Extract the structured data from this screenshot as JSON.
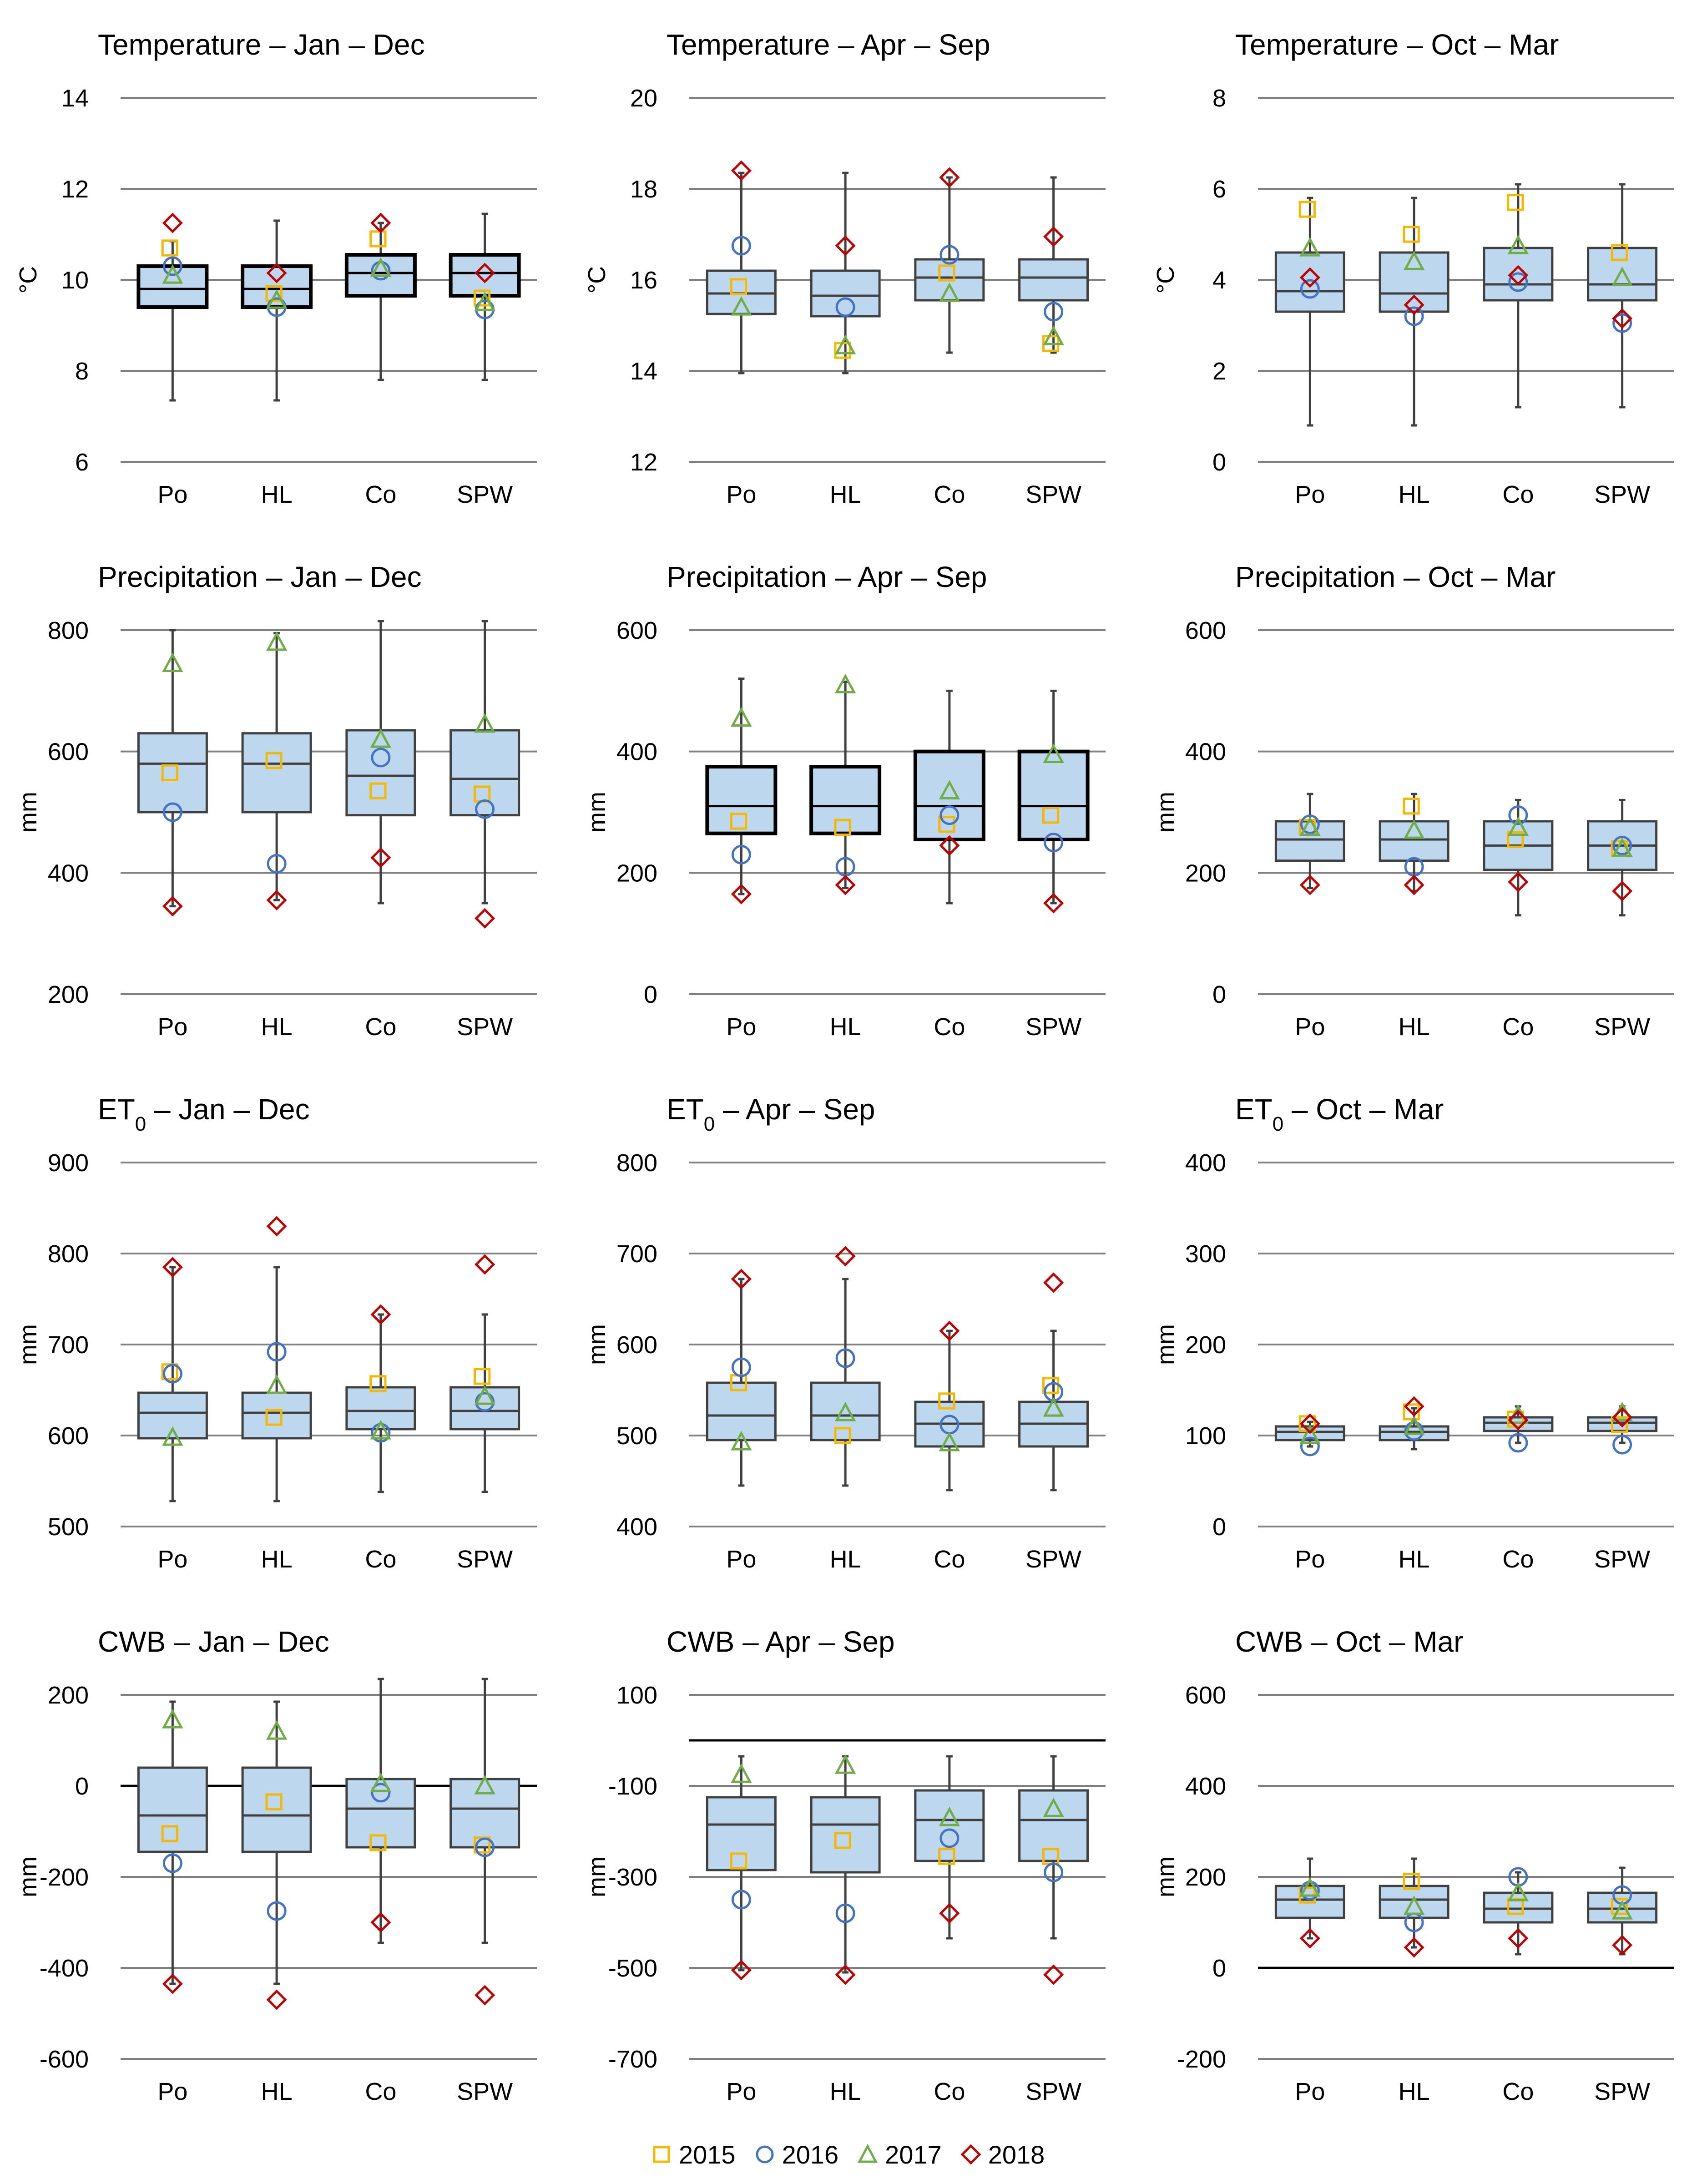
{
  "legend": [
    {
      "label": "2015",
      "symbol": "square",
      "color": "#F5B800"
    },
    {
      "label": "2016",
      "symbol": "circle",
      "color": "#4472C4"
    },
    {
      "label": "2017",
      "symbol": "triangle",
      "color": "#70AD47"
    },
    {
      "label": "2018",
      "symbol": "diamond",
      "color": "#C00000"
    }
  ],
  "colors": {
    "box_fill": "#BDD7EE",
    "box_edge": "#404040",
    "grid": "#808080",
    "zero_line": "#000000"
  },
  "chart_data": [
    {
      "type": "box",
      "title": "Temperature – Jan – Dec",
      "ylabel": "°C",
      "ylim": [
        6,
        14
      ],
      "yticks": [
        6,
        8,
        10,
        12,
        14
      ],
      "categories": [
        "Po",
        "HL",
        "Co",
        "SPW"
      ],
      "zero_line": false,
      "bold_boxes": true,
      "boxes": [
        {
          "min": 7.35,
          "q1": 9.4,
          "median": 9.8,
          "q3": 10.3,
          "max": 10.85
        },
        {
          "min": 7.35,
          "q1": 9.4,
          "median": 9.8,
          "q3": 10.3,
          "max": 11.3
        },
        {
          "min": 7.8,
          "q1": 9.65,
          "median": 10.15,
          "q3": 10.55,
          "max": 11.25
        },
        {
          "min": 7.8,
          "q1": 9.65,
          "median": 10.15,
          "q3": 10.55,
          "max": 11.45
        }
      ],
      "years": {
        "2015": [
          10.7,
          9.7,
          10.9,
          9.6
        ],
        "2016": [
          10.3,
          9.4,
          10.2,
          9.35
        ],
        "2017": [
          10.1,
          9.55,
          10.25,
          9.5
        ],
        "2018": [
          11.25,
          10.15,
          11.25,
          10.15
        ]
      }
    },
    {
      "type": "box",
      "title": "Temperature – Apr – Sep",
      "ylabel": "°C",
      "ylim": [
        12,
        20
      ],
      "yticks": [
        12,
        14,
        16,
        18,
        20
      ],
      "categories": [
        "Po",
        "HL",
        "Co",
        "SPW"
      ],
      "zero_line": false,
      "bold_boxes": false,
      "boxes": [
        {
          "min": 13.95,
          "q1": 15.25,
          "median": 15.7,
          "q3": 16.2,
          "max": 18.35
        },
        {
          "min": 13.95,
          "q1": 15.2,
          "median": 15.65,
          "q3": 16.2,
          "max": 18.35
        },
        {
          "min": 14.4,
          "q1": 15.55,
          "median": 16.05,
          "q3": 16.45,
          "max": 18.25
        },
        {
          "min": 14.4,
          "q1": 15.55,
          "median": 16.05,
          "q3": 16.45,
          "max": 18.25
        }
      ],
      "years": {
        "2015": [
          15.85,
          14.45,
          16.15,
          14.6
        ],
        "2016": [
          16.75,
          15.4,
          16.55,
          15.3
        ],
        "2017": [
          15.4,
          14.55,
          15.7,
          14.75
        ],
        "2018": [
          18.4,
          16.75,
          18.25,
          16.95
        ]
      }
    },
    {
      "type": "box",
      "title": "Temperature – Oct – Mar",
      "ylabel": "°C",
      "ylim": [
        0,
        8
      ],
      "yticks": [
        0,
        2,
        4,
        6,
        8
      ],
      "categories": [
        "Po",
        "HL",
        "Co",
        "SPW"
      ],
      "zero_line": false,
      "bold_boxes": false,
      "boxes": [
        {
          "min": 0.8,
          "q1": 3.3,
          "median": 3.75,
          "q3": 4.6,
          "max": 5.8
        },
        {
          "min": 0.8,
          "q1": 3.3,
          "median": 3.7,
          "q3": 4.6,
          "max": 5.8
        },
        {
          "min": 1.2,
          "q1": 3.55,
          "median": 3.9,
          "q3": 4.7,
          "max": 6.1
        },
        {
          "min": 1.2,
          "q1": 3.55,
          "median": 3.9,
          "q3": 4.7,
          "max": 6.1
        }
      ],
      "years": {
        "2015": [
          5.55,
          5.0,
          5.7,
          4.6
        ],
        "2016": [
          3.8,
          3.2,
          3.95,
          3.05
        ],
        "2017": [
          4.7,
          4.4,
          4.75,
          4.05
        ],
        "2018": [
          4.05,
          3.45,
          4.1,
          3.15
        ]
      }
    },
    {
      "type": "box",
      "title": "Precipitation – Jan – Dec",
      "ylabel": "mm",
      "ylim": [
        200,
        800
      ],
      "yticks": [
        200,
        400,
        600,
        800
      ],
      "categories": [
        "Po",
        "HL",
        "Co",
        "SPW"
      ],
      "zero_line": false,
      "bold_boxes": false,
      "boxes": [
        {
          "min": 345,
          "q1": 500,
          "median": 580,
          "q3": 630,
          "max": 800
        },
        {
          "min": 355,
          "q1": 500,
          "median": 580,
          "q3": 630,
          "max": 795
        },
        {
          "min": 350,
          "q1": 495,
          "median": 560,
          "q3": 635,
          "max": 815
        },
        {
          "min": 350,
          "q1": 495,
          "median": 555,
          "q3": 635,
          "max": 815
        }
      ],
      "years": {
        "2015": [
          565,
          585,
          535,
          530
        ],
        "2016": [
          500,
          415,
          590,
          505
        ],
        "2017": [
          745,
          780,
          620,
          645
        ],
        "2018": [
          345,
          355,
          425,
          325
        ]
      }
    },
    {
      "type": "box",
      "title": "Precipitation – Apr – Sep",
      "ylabel": "mm",
      "ylim": [
        0,
        600
      ],
      "yticks": [
        0,
        200,
        400,
        600
      ],
      "categories": [
        "Po",
        "HL",
        "Co",
        "SPW"
      ],
      "zero_line": false,
      "bold_boxes": true,
      "boxes": [
        {
          "min": 165,
          "q1": 265,
          "median": 310,
          "q3": 375,
          "max": 520
        },
        {
          "min": 175,
          "q1": 265,
          "median": 310,
          "q3": 375,
          "max": 515
        },
        {
          "min": 150,
          "q1": 255,
          "median": 310,
          "q3": 400,
          "max": 500
        },
        {
          "min": 150,
          "q1": 255,
          "median": 310,
          "q3": 400,
          "max": 500
        }
      ],
      "years": {
        "2015": [
          285,
          275,
          280,
          295
        ],
        "2016": [
          230,
          210,
          295,
          250
        ],
        "2017": [
          455,
          510,
          335,
          395
        ],
        "2018": [
          165,
          180,
          245,
          150
        ]
      }
    },
    {
      "type": "box",
      "title": "Precipitation – Oct – Mar",
      "ylabel": "mm",
      "ylim": [
        0,
        600
      ],
      "yticks": [
        0,
        200,
        400,
        600
      ],
      "categories": [
        "Po",
        "HL",
        "Co",
        "SPW"
      ],
      "zero_line": false,
      "bold_boxes": false,
      "boxes": [
        {
          "min": 175,
          "q1": 220,
          "median": 255,
          "q3": 285,
          "max": 330
        },
        {
          "min": 170,
          "q1": 220,
          "median": 255,
          "q3": 285,
          "max": 330
        },
        {
          "min": 130,
          "q1": 205,
          "median": 245,
          "q3": 285,
          "max": 320
        },
        {
          "min": 130,
          "q1": 205,
          "median": 245,
          "q3": 285,
          "max": 320
        }
      ],
      "years": {
        "2015": [
          275,
          310,
          255,
          240
        ],
        "2016": [
          280,
          210,
          295,
          245
        ],
        "2017": [
          275,
          270,
          275,
          240
        ],
        "2018": [
          180,
          180,
          185,
          170
        ]
      }
    },
    {
      "type": "box",
      "title": "ET0 – Jan – Dec",
      "title_parts": {
        "main": "ET",
        "sub": "0",
        "rest": " – Jan – Dec"
      },
      "ylabel": "mm",
      "ylim": [
        500,
        900
      ],
      "yticks": [
        500,
        600,
        700,
        800,
        900
      ],
      "categories": [
        "Po",
        "HL",
        "Co",
        "SPW"
      ],
      "zero_line": false,
      "bold_boxes": false,
      "boxes": [
        {
          "min": 528,
          "q1": 597,
          "median": 625,
          "q3": 647,
          "max": 785
        },
        {
          "min": 528,
          "q1": 597,
          "median": 625,
          "q3": 647,
          "max": 785
        },
        {
          "min": 538,
          "q1": 607,
          "median": 627,
          "q3": 653,
          "max": 733
        },
        {
          "min": 538,
          "q1": 607,
          "median": 627,
          "q3": 653,
          "max": 733
        }
      ],
      "years": {
        "2015": [
          670,
          620,
          657,
          665
        ],
        "2016": [
          668,
          692,
          603,
          637
        ],
        "2017": [
          598,
          655,
          605,
          643
        ],
        "2018": [
          785,
          830,
          733,
          788
        ]
      }
    },
    {
      "type": "box",
      "title": "ET0 – Apr – Sep",
      "title_parts": {
        "main": "ET",
        "sub": "0",
        "rest": " – Apr – Sep"
      },
      "ylabel": "mm",
      "ylim": [
        400,
        800
      ],
      "yticks": [
        400,
        500,
        600,
        700,
        800
      ],
      "categories": [
        "Po",
        "HL",
        "Co",
        "SPW"
      ],
      "zero_line": false,
      "bold_boxes": false,
      "boxes": [
        {
          "min": 445,
          "q1": 495,
          "median": 522,
          "q3": 558,
          "max": 672
        },
        {
          "min": 445,
          "q1": 495,
          "median": 522,
          "q3": 558,
          "max": 672
        },
        {
          "min": 440,
          "q1": 488,
          "median": 513,
          "q3": 537,
          "max": 615
        },
        {
          "min": 440,
          "q1": 488,
          "median": 513,
          "q3": 537,
          "max": 615
        }
      ],
      "years": {
        "2015": [
          558,
          500,
          538,
          555
        ],
        "2016": [
          575,
          585,
          512,
          548
        ],
        "2017": [
          493,
          525,
          492,
          530
        ],
        "2018": [
          672,
          697,
          615,
          668
        ]
      }
    },
    {
      "type": "box",
      "title": "ET0 – Oct – Mar",
      "title_parts": {
        "main": "ET",
        "sub": "0",
        "rest": " – Oct – Mar"
      },
      "ylabel": "mm",
      "ylim": [
        0,
        400
      ],
      "yticks": [
        0,
        100,
        200,
        300,
        400
      ],
      "categories": [
        "Po",
        "HL",
        "Co",
        "SPW"
      ],
      "zero_line": false,
      "bold_boxes": false,
      "boxes": [
        {
          "min": 88,
          "q1": 95,
          "median": 104,
          "q3": 110,
          "max": 115
        },
        {
          "min": 85,
          "q1": 95,
          "median": 104,
          "q3": 110,
          "max": 130
        },
        {
          "min": 92,
          "q1": 105,
          "median": 114,
          "q3": 120,
          "max": 132
        },
        {
          "min": 92,
          "q1": 105,
          "median": 114,
          "q3": 120,
          "max": 132
        }
      ],
      "years": {
        "2015": [
          113,
          126,
          118,
          112
        ],
        "2016": [
          88,
          105,
          92,
          90
        ],
        "2017": [
          100,
          110,
          122,
          125
        ],
        "2018": [
          113,
          132,
          117,
          120
        ]
      }
    },
    {
      "type": "box",
      "title": "CWB – Jan – Dec",
      "ylabel": "mm",
      "ylim": [
        -600,
        200
      ],
      "yticks": [
        -600,
        -400,
        -200,
        0,
        200
      ],
      "categories": [
        "Po",
        "HL",
        "Co",
        "SPW"
      ],
      "zero_line": true,
      "bold_boxes": false,
      "boxes": [
        {
          "min": -435,
          "q1": -145,
          "median": -65,
          "q3": 40,
          "max": 185
        },
        {
          "min": -435,
          "q1": -145,
          "median": -65,
          "q3": 40,
          "max": 185
        },
        {
          "min": -345,
          "q1": -135,
          "median": -50,
          "q3": 15,
          "max": 235
        },
        {
          "min": -345,
          "q1": -135,
          "median": -50,
          "q3": 15,
          "max": 235
        }
      ],
      "years": {
        "2015": [
          -105,
          -35,
          -125,
          -130
        ],
        "2016": [
          -170,
          -275,
          -15,
          -135
        ],
        "2017": [
          145,
          120,
          5,
          0
        ],
        "2018": [
          -435,
          -470,
          -300,
          -460
        ]
      }
    },
    {
      "type": "box",
      "title": "CWB – Apr – Sep",
      "ylabel": "mm",
      "ylim": [
        -700,
        100
      ],
      "yticks": [
        -700,
        -500,
        -300,
        -100,
        100
      ],
      "categories": [
        "Po",
        "HL",
        "Co",
        "SPW"
      ],
      "zero_line": true,
      "bold_boxes": false,
      "boxes": [
        {
          "min": -505,
          "q1": -285,
          "median": -185,
          "q3": -125,
          "max": -35
        },
        {
          "min": -510,
          "q1": -290,
          "median": -185,
          "q3": -125,
          "max": -35
        },
        {
          "min": -435,
          "q1": -265,
          "median": -175,
          "q3": -110,
          "max": -35
        },
        {
          "min": -435,
          "q1": -265,
          "median": -175,
          "q3": -110,
          "max": -35
        }
      ],
      "years": {
        "2015": [
          -265,
          -220,
          -255,
          -255
        ],
        "2016": [
          -350,
          -380,
          -215,
          -290
        ],
        "2017": [
          -75,
          -55,
          -170,
          -150
        ],
        "2018": [
          -505,
          -515,
          -380,
          -515
        ]
      }
    },
    {
      "type": "box",
      "title": "CWB – Oct – Mar",
      "ylabel": "mm",
      "ylim": [
        -200,
        600
      ],
      "yticks": [
        -200,
        0,
        200,
        400,
        600
      ],
      "categories": [
        "Po",
        "HL",
        "Co",
        "SPW"
      ],
      "zero_line": true,
      "bold_boxes": false,
      "boxes": [
        {
          "min": 65,
          "q1": 110,
          "median": 150,
          "q3": 180,
          "max": 240
        },
        {
          "min": 45,
          "q1": 110,
          "median": 150,
          "q3": 180,
          "max": 240
        },
        {
          "min": 30,
          "q1": 100,
          "median": 130,
          "q3": 165,
          "max": 210
        },
        {
          "min": 30,
          "q1": 100,
          "median": 130,
          "q3": 165,
          "max": 220
        }
      ],
      "years": {
        "2015": [
          160,
          190,
          135,
          135
        ],
        "2016": [
          170,
          100,
          200,
          160
        ],
        "2017": [
          175,
          135,
          165,
          125
        ],
        "2018": [
          65,
          45,
          65,
          50
        ]
      }
    }
  ]
}
